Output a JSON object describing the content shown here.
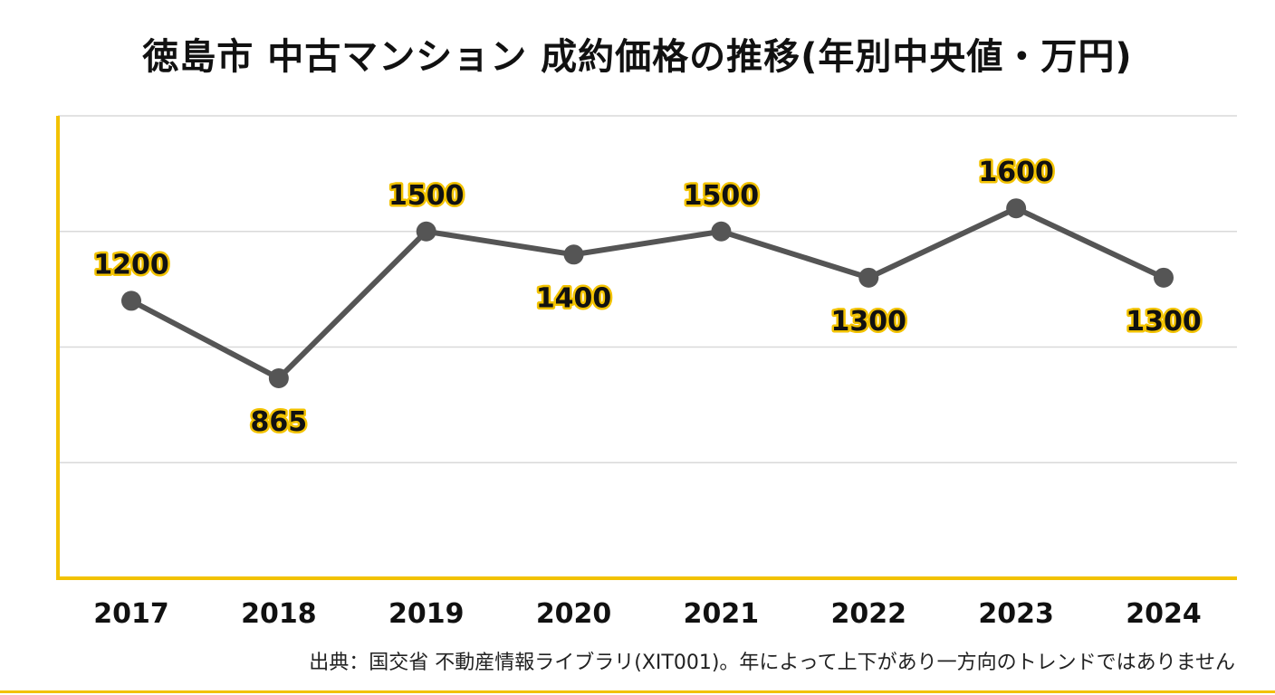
{
  "title": "徳島市 中古マンション 成約価格の推移(年別中央値・万円)",
  "source": "出典：国交省 不動産情報ライブラリ(XIT001)。年によって上下があり一方向のトレンドではありません",
  "colors": {
    "accent": "#f2c200",
    "line": "#555555",
    "grid": "#d9d9d9"
  },
  "chart_data": {
    "type": "line",
    "categories": [
      "2017",
      "2018",
      "2019",
      "2020",
      "2021",
      "2022",
      "2023",
      "2024"
    ],
    "values": [
      1200,
      865,
      1500,
      1400,
      1500,
      1300,
      1600,
      1300
    ],
    "label_position": [
      "above",
      "below",
      "above",
      "below",
      "above",
      "below",
      "above",
      "below"
    ],
    "ylim": [
      0,
      2000
    ],
    "gridlines": [
      500,
      1000,
      1500,
      2000
    ],
    "grid": true
  }
}
